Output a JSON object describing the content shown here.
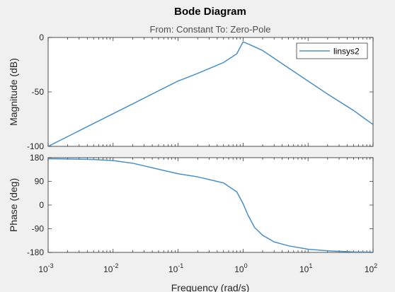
{
  "chart_data": {
    "type": "line",
    "title": "Bode Diagram",
    "subtitle": "From: Constant  To: Zero-Pole",
    "xlabel": "Frequency  (rad/s)",
    "xscale": "log",
    "xlim": [
      0.001,
      100
    ],
    "x_ticks": [
      {
        "base": "10",
        "exp": "-3"
      },
      {
        "base": "10",
        "exp": "-2"
      },
      {
        "base": "10",
        "exp": "-1"
      },
      {
        "base": "10",
        "exp": "0"
      },
      {
        "base": "10",
        "exp": "1"
      },
      {
        "base": "10",
        "exp": "2"
      }
    ],
    "legend": {
      "entries": [
        "linsys2"
      ],
      "placement": "top-right"
    },
    "line_color": "#4a90c8",
    "panels": [
      {
        "name": "magnitude",
        "ylabel": "Magnitude (dB)",
        "ylim": [
          -100,
          0
        ],
        "yticks": [
          0,
          -50,
          -100
        ],
        "ytick_labels": [
          "0",
          "-50",
          "-100"
        ],
        "series": [
          {
            "name": "linsys2",
            "x": [
              0.001,
              0.002,
              0.005,
              0.01,
              0.02,
              0.05,
              0.1,
              0.2,
              0.5,
              0.8,
              1.0,
              1.2,
              2,
              5,
              10,
              20,
              50,
              100
            ],
            "y": [
              -100,
              -91,
              -79,
              -70,
              -61,
              -49,
              -40,
              -33,
              -23,
              -15,
              -4,
              -6,
              -12,
              -28,
              -40,
              -52,
              -67,
              -80
            ]
          }
        ]
      },
      {
        "name": "phase",
        "ylabel": "Phase (deg)",
        "ylim": [
          -180,
          180
        ],
        "yticks": [
          180,
          90,
          0,
          -90,
          -180
        ],
        "ytick_labels": [
          "180",
          "90",
          "0",
          "-90",
          "-180"
        ],
        "series": [
          {
            "name": "linsys2",
            "x": [
              0.001,
              0.002,
              0.005,
              0.01,
              0.02,
              0.05,
              0.1,
              0.2,
              0.5,
              0.8,
              1.0,
              1.2,
              1.5,
              2,
              3,
              5,
              10,
              20,
              50,
              100
            ],
            "y": [
              176,
              175,
              173,
              169,
              159,
              136,
              119,
              107,
              84,
              50,
              5,
              -40,
              -85,
              -115,
              -140,
              -155,
              -168,
              -174,
              -178,
              -179
            ]
          }
        ]
      }
    ],
    "grid": false
  }
}
